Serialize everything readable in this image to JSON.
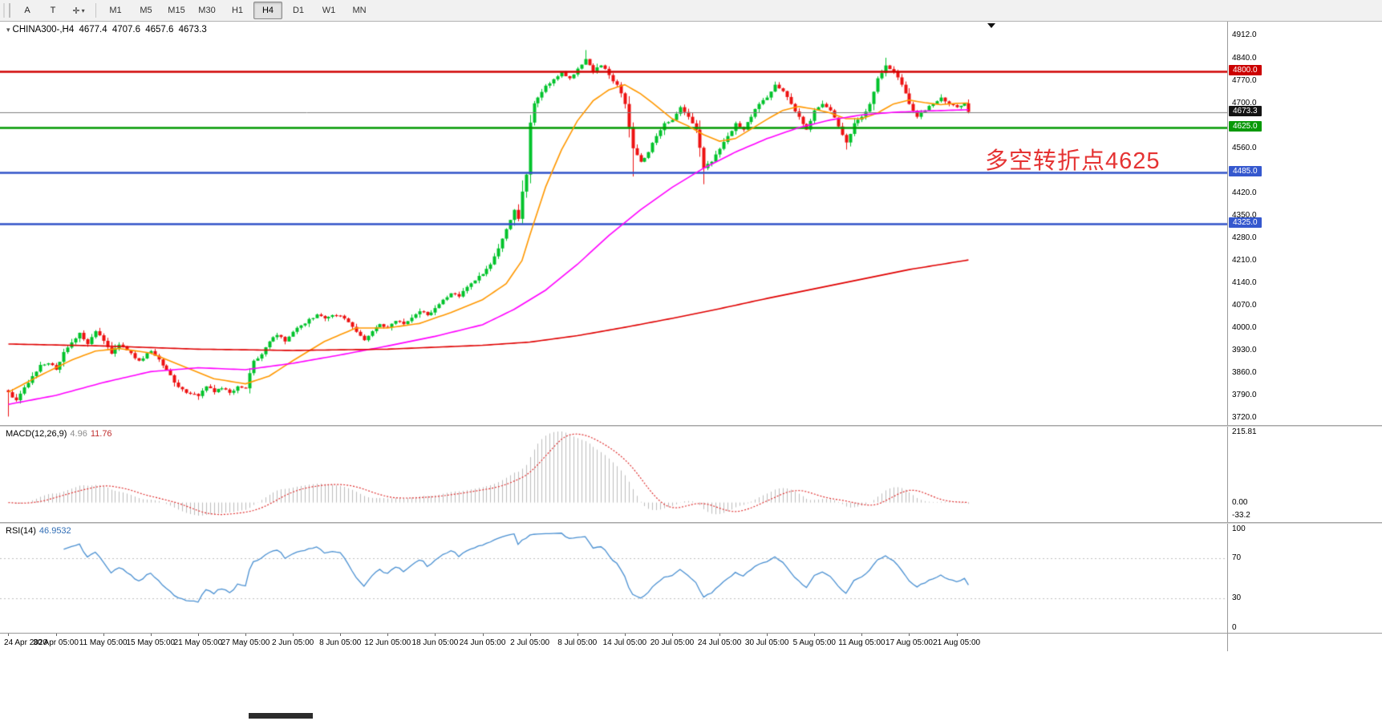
{
  "toolbar": {
    "buttons": [
      {
        "id": "arrow-tool",
        "label": "A"
      },
      {
        "id": "text-tool",
        "label": "T"
      }
    ],
    "cursor_button": {
      "glyph": "✛",
      "caret": "▾"
    },
    "timeframes": [
      "M1",
      "M5",
      "M15",
      "M30",
      "H1",
      "H4",
      "D1",
      "W1",
      "MN"
    ],
    "active_timeframe": "H4"
  },
  "header": {
    "marker": "▾",
    "symbol": "CHINA300-,H4",
    "open": "4677.4",
    "high": "4707.6",
    "low": "4657.6",
    "close": "4673.3"
  },
  "annotation": {
    "text": "多空转折点4625",
    "color": "#E53333"
  },
  "price_axis_ticks": [
    "4912.0",
    "4840.0",
    "4770.0",
    "4700.0",
    "4630.0",
    "4560.0",
    "4490.0",
    "4420.0",
    "4350.0",
    "4280.0",
    "4210.0",
    "4140.0",
    "4070.0",
    "4000.0",
    "3930.0",
    "3860.0",
    "3790.0",
    "3720.0"
  ],
  "levels": [
    {
      "value": 4800.0,
      "label": "4800.0",
      "line": "#D10000",
      "badge": "#CC0000",
      "width": 2.5
    },
    {
      "value": 4625.0,
      "label": "4625.0",
      "line": "#009900",
      "badge": "#089908",
      "width": 2.5
    },
    {
      "value": 4485.0,
      "label": "4485.0",
      "line": "#3052C8",
      "badge": "#3558CE",
      "width": 2.5
    },
    {
      "value": 4325.0,
      "label": "4325.0",
      "line": "#3052C8",
      "badge": "#3558CE",
      "width": 2.5
    },
    {
      "value": 4673.3,
      "label": "4673.3",
      "line": "#808080",
      "badge": "#141414",
      "width": 1,
      "current": true
    }
  ],
  "time_axis": {
    "indices": [
      0,
      12,
      24,
      36,
      48,
      60,
      72,
      84,
      96,
      108,
      120,
      132,
      144,
      156,
      168,
      180,
      192,
      204,
      216,
      228,
      240
    ],
    "labels": [
      "24 Apr 2020",
      "30 Apr 05:00",
      "11 May 05:00",
      "15 May 05:00",
      "21 May 05:00",
      "27 May 05:00",
      "2 Jun 05:00",
      "8 Jun 05:00",
      "12 Jun 05:00",
      "18 Jun 05:00",
      "24 Jun 05:00",
      "2 Jul 05:00",
      "8 Jul 05:00",
      "14 Jul 05:00",
      "20 Jul 05:00",
      "24 Jul 05:00",
      "30 Jul 05:00",
      "5 Aug 05:00",
      "11 Aug 05:00",
      "17 Aug 05:00",
      "21 Aug 05:00"
    ]
  },
  "macd_panel": {
    "name": "MACD(12,26,9)",
    "main_value": "4.96",
    "signal_value": "11.76",
    "ticks": {
      "top": "215.81",
      "zero": "0.00",
      "bottom": "-33.2"
    }
  },
  "rsi_panel": {
    "name": "RSI(14)",
    "value": "46.9532",
    "ticks": [
      "100",
      "70",
      "30",
      "0"
    ],
    "tick_values": [
      100,
      70,
      30,
      0
    ],
    "guides": [
      70,
      30
    ]
  },
  "colors": {
    "candle_up": "#00C32B",
    "candle_down": "#ED1111",
    "ma_fast": "#FF9800",
    "ma_medium": "#FF00FF",
    "ma_slow": "#E00000",
    "macd_hist": "#BDBDBD",
    "macd_signal": "#E03030",
    "rsi_line": "#4A90D2",
    "rsi_guide": "#C0C0C0",
    "current_line": "#808080"
  },
  "chart_data": {
    "type": "candlestick-ohlc",
    "symbol": "CHINA300-",
    "timeframe": "H4",
    "title": "CHINA300-,H4 4677.4 4707.6 4657.6 4673.3",
    "price_range": [
      3720,
      4912
    ],
    "visible_candles": 244,
    "total_slots": 309,
    "seed": 7,
    "close_anchors": [
      [
        0,
        3800
      ],
      [
        2,
        3775
      ],
      [
        4,
        3815
      ],
      [
        6,
        3850
      ],
      [
        8,
        3885
      ],
      [
        10,
        3890
      ],
      [
        12,
        3870
      ],
      [
        14,
        3925
      ],
      [
        16,
        3955
      ],
      [
        18,
        3985
      ],
      [
        20,
        3950
      ],
      [
        22,
        3990
      ],
      [
        24,
        3960
      ],
      [
        26,
        3920
      ],
      [
        28,
        3948
      ],
      [
        30,
        3930
      ],
      [
        33,
        3898
      ],
      [
        36,
        3928
      ],
      [
        38,
        3902
      ],
      [
        40,
        3868
      ],
      [
        42,
        3830
      ],
      [
        45,
        3798
      ],
      [
        48,
        3788
      ],
      [
        50,
        3818
      ],
      [
        52,
        3800
      ],
      [
        54,
        3812
      ],
      [
        56,
        3798
      ],
      [
        58,
        3818
      ],
      [
        60,
        3812
      ],
      [
        62,
        3898
      ],
      [
        64,
        3918
      ],
      [
        66,
        3958
      ],
      [
        68,
        3978
      ],
      [
        70,
        3958
      ],
      [
        72,
        3988
      ],
      [
        74,
        4008
      ],
      [
        76,
        4028
      ],
      [
        78,
        4042
      ],
      [
        80,
        4030
      ],
      [
        82,
        4040
      ],
      [
        84,
        4038
      ],
      [
        86,
        4018
      ],
      [
        88,
        3988
      ],
      [
        90,
        3962
      ],
      [
        92,
        3990
      ],
      [
        94,
        4012
      ],
      [
        96,
        4002
      ],
      [
        98,
        4022
      ],
      [
        100,
        4012
      ],
      [
        102,
        4032
      ],
      [
        104,
        4052
      ],
      [
        106,
        4040
      ],
      [
        108,
        4062
      ],
      [
        110,
        4088
      ],
      [
        112,
        4108
      ],
      [
        114,
        4098
      ],
      [
        116,
        4128
      ],
      [
        118,
        4148
      ],
      [
        120,
        4168
      ],
      [
        122,
        4198
      ],
      [
        124,
        4248
      ],
      [
        126,
        4308
      ],
      [
        128,
        4368
      ],
      [
        129,
        4340
      ],
      [
        130,
        4425
      ],
      [
        131,
        4478
      ],
      [
        132,
        4640
      ],
      [
        133,
        4700
      ],
      [
        134,
        4718
      ],
      [
        136,
        4755
      ],
      [
        138,
        4775
      ],
      [
        140,
        4798
      ],
      [
        142,
        4778
      ],
      [
        144,
        4808
      ],
      [
        146,
        4838
      ],
      [
        148,
        4798
      ],
      [
        150,
        4818
      ],
      [
        152,
        4788
      ],
      [
        154,
        4758
      ],
      [
        156,
        4698
      ],
      [
        158,
        4560
      ],
      [
        160,
        4518
      ],
      [
        162,
        4548
      ],
      [
        164,
        4598
      ],
      [
        166,
        4638
      ],
      [
        168,
        4648
      ],
      [
        170,
        4688
      ],
      [
        172,
        4658
      ],
      [
        174,
        4618
      ],
      [
        176,
        4498
      ],
      [
        178,
        4518
      ],
      [
        180,
        4558
      ],
      [
        182,
        4598
      ],
      [
        184,
        4638
      ],
      [
        186,
        4618
      ],
      [
        188,
        4658
      ],
      [
        190,
        4698
      ],
      [
        192,
        4718
      ],
      [
        194,
        4758
      ],
      [
        196,
        4738
      ],
      [
        198,
        4698
      ],
      [
        200,
        4658
      ],
      [
        202,
        4618
      ],
      [
        204,
        4678
      ],
      [
        206,
        4698
      ],
      [
        208,
        4678
      ],
      [
        210,
        4628
      ],
      [
        212,
        4578
      ],
      [
        214,
        4638
      ],
      [
        216,
        4658
      ],
      [
        218,
        4698
      ],
      [
        220,
        4778
      ],
      [
        222,
        4818
      ],
      [
        224,
        4798
      ],
      [
        226,
        4758
      ],
      [
        228,
        4698
      ],
      [
        230,
        4658
      ],
      [
        232,
        4678
      ],
      [
        234,
        4698
      ],
      [
        236,
        4718
      ],
      [
        238,
        4698
      ],
      [
        240,
        4688
      ],
      [
        242,
        4700
      ],
      [
        243,
        4673.3
      ]
    ],
    "wick_overrides": [
      [
        0,
        "low",
        3724
      ],
      [
        48,
        "low",
        3776
      ],
      [
        146,
        "high",
        4866
      ],
      [
        158,
        "low",
        4472
      ],
      [
        176,
        "low",
        4448
      ],
      [
        212,
        "low",
        4556
      ],
      [
        222,
        "high",
        4842
      ]
    ],
    "moving_averages": [
      {
        "name": "fast",
        "color": "#FF9800",
        "anchors": [
          [
            0,
            3800
          ],
          [
            8,
            3852
          ],
          [
            16,
            3900
          ],
          [
            22,
            3928
          ],
          [
            28,
            3936
          ],
          [
            36,
            3922
          ],
          [
            44,
            3882
          ],
          [
            52,
            3842
          ],
          [
            60,
            3826
          ],
          [
            66,
            3850
          ],
          [
            72,
            3898
          ],
          [
            80,
            3958
          ],
          [
            88,
            4000
          ],
          [
            96,
            4000
          ],
          [
            104,
            4014
          ],
          [
            112,
            4048
          ],
          [
            120,
            4088
          ],
          [
            126,
            4138
          ],
          [
            130,
            4210
          ],
          [
            132,
            4290
          ],
          [
            136,
            4440
          ],
          [
            140,
            4555
          ],
          [
            144,
            4645
          ],
          [
            148,
            4708
          ],
          [
            152,
            4742
          ],
          [
            156,
            4758
          ],
          [
            160,
            4730
          ],
          [
            164,
            4692
          ],
          [
            168,
            4652
          ],
          [
            172,
            4630
          ],
          [
            176,
            4602
          ],
          [
            180,
            4582
          ],
          [
            184,
            4590
          ],
          [
            188,
            4620
          ],
          [
            192,
            4650
          ],
          [
            196,
            4678
          ],
          [
            200,
            4690
          ],
          [
            204,
            4682
          ],
          [
            208,
            4670
          ],
          [
            212,
            4652
          ],
          [
            216,
            4652
          ],
          [
            220,
            4670
          ],
          [
            224,
            4698
          ],
          [
            228,
            4710
          ],
          [
            232,
            4702
          ],
          [
            236,
            4696
          ],
          [
            240,
            4700
          ],
          [
            243,
            4701
          ]
        ]
      },
      {
        "name": "medium",
        "color": "#FF00FF",
        "anchors": [
          [
            0,
            3762
          ],
          [
            12,
            3790
          ],
          [
            24,
            3830
          ],
          [
            36,
            3864
          ],
          [
            48,
            3876
          ],
          [
            60,
            3870
          ],
          [
            72,
            3890
          ],
          [
            84,
            3916
          ],
          [
            96,
            3944
          ],
          [
            108,
            3974
          ],
          [
            120,
            4010
          ],
          [
            128,
            4058
          ],
          [
            136,
            4118
          ],
          [
            144,
            4198
          ],
          [
            152,
            4288
          ],
          [
            160,
            4368
          ],
          [
            168,
            4438
          ],
          [
            176,
            4498
          ],
          [
            184,
            4548
          ],
          [
            192,
            4590
          ],
          [
            200,
            4624
          ],
          [
            208,
            4648
          ],
          [
            216,
            4664
          ],
          [
            224,
            4672
          ],
          [
            232,
            4676
          ],
          [
            240,
            4679
          ],
          [
            243,
            4680
          ]
        ]
      },
      {
        "name": "slow",
        "color": "#E00000",
        "anchors": [
          [
            0,
            3950
          ],
          [
            24,
            3944
          ],
          [
            48,
            3934
          ],
          [
            72,
            3930
          ],
          [
            96,
            3934
          ],
          [
            120,
            3946
          ],
          [
            132,
            3956
          ],
          [
            144,
            3976
          ],
          [
            156,
            4002
          ],
          [
            168,
            4030
          ],
          [
            180,
            4060
          ],
          [
            192,
            4092
          ],
          [
            204,
            4122
          ],
          [
            216,
            4152
          ],
          [
            228,
            4182
          ],
          [
            243,
            4212
          ]
        ]
      }
    ],
    "indicators": {
      "macd": {
        "fast": 12,
        "slow": 26,
        "signal": 9
      },
      "rsi": {
        "period": 14
      }
    },
    "horizontal_levels": [
      4800.0,
      4673.3,
      4625.0,
      4485.0,
      4325.0
    ]
  }
}
